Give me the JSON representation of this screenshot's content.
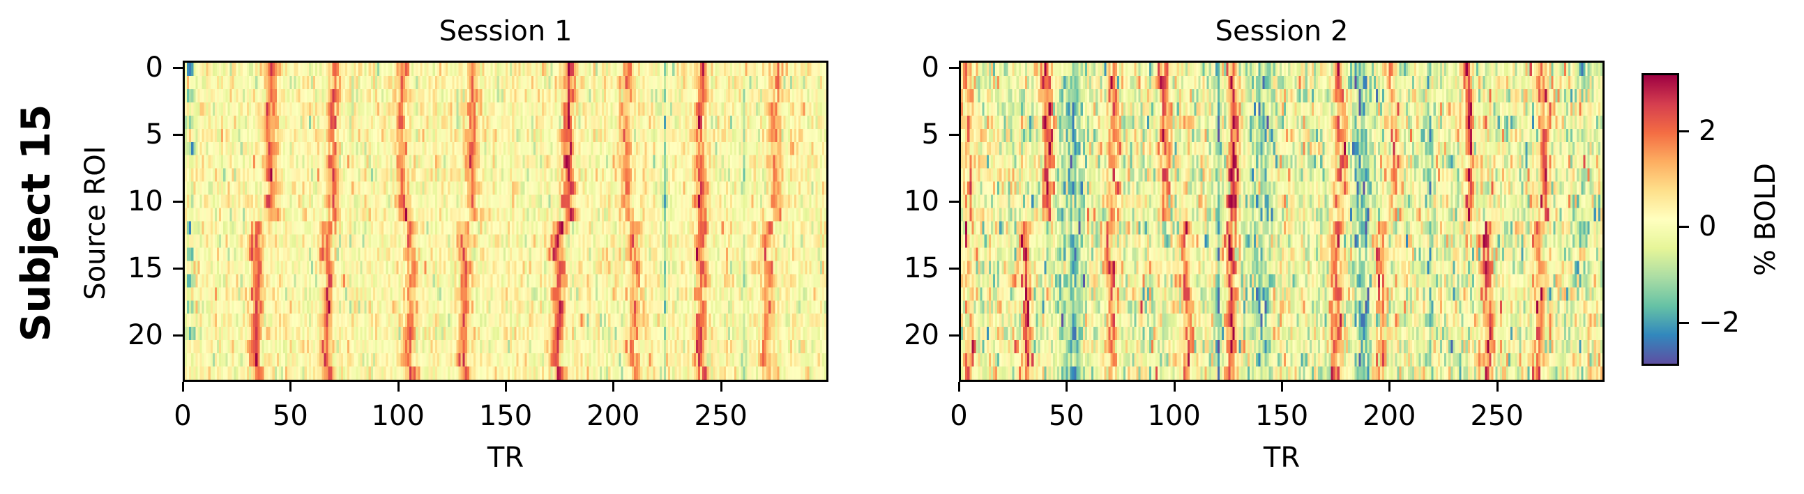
{
  "figure": {
    "row_title": "Subject 15",
    "ylabel": "Source ROI",
    "colorbar_label": "% BOLD",
    "colorbar_ticks": [
      {
        "label": "2",
        "value": 2
      },
      {
        "label": "0",
        "value": 0
      },
      {
        "label": "−2",
        "value": -2
      }
    ],
    "colormap": "Spectral_r",
    "colormap_stops": [
      "#5e4fa2",
      "#3288bd",
      "#66c2a5",
      "#abdda4",
      "#e6f598",
      "#ffffbf",
      "#fee08b",
      "#fdae61",
      "#f46d43",
      "#d53e4f",
      "#9e0142"
    ]
  },
  "panels": [
    {
      "title": "Session 1",
      "xlabel": "TR",
      "x_ticks": [
        "0",
        "50",
        "100",
        "150",
        "200",
        "250"
      ],
      "y_ticks": [
        "0",
        "5",
        "10",
        "15",
        "20"
      ]
    },
    {
      "title": "Session 2",
      "xlabel": "TR",
      "x_ticks": [
        "0",
        "50",
        "100",
        "150",
        "200",
        "250"
      ],
      "y_ticks": [
        "0",
        "5",
        "10",
        "15",
        "20"
      ]
    }
  ],
  "chart_data": [
    {
      "type": "heatmap",
      "title": "Session 1",
      "row_title": "Subject 15",
      "xlabel": "TR",
      "ylabel": "Source ROI",
      "n_rows": 24,
      "n_cols": 300,
      "xlim": [
        0,
        300
      ],
      "ylim": [
        24,
        0
      ],
      "x_ticks": [
        0,
        50,
        100,
        150,
        200,
        250
      ],
      "y_ticks": [
        0,
        5,
        10,
        15,
        20
      ],
      "vmin": -2.9,
      "vmax": 3.2,
      "colorbar_label": "% BOLD",
      "noise_sd": 0.45,
      "baseline": 0.15,
      "seed": 15,
      "description": "Periodic positive BOLD bands (red) at roughly 30-35 TR spacing; rows 0-11 and 12-23 show slightly shifted peak times; low values (blue) near TR 0-5 in several rows and narrow dips near TR 224 and 261.",
      "bands": [
        {
          "tr_rows_0_11": 40,
          "tr_rows_12_23": 33,
          "amp": 1.9,
          "width": 3.0
        },
        {
          "tr_rows_0_11": 69,
          "tr_rows_12_23": 66,
          "amp": 1.9,
          "width": 2.5
        },
        {
          "tr_rows_0_11": 101,
          "tr_rows_12_23": 105,
          "amp": 1.7,
          "width": 2.5
        },
        {
          "tr_rows_0_11": 134,
          "tr_rows_12_23": 130,
          "amp": 1.8,
          "width": 2.5
        },
        {
          "tr_rows_0_11": 179,
          "tr_rows_12_23": 174,
          "amp": 2.4,
          "width": 2.5
        },
        {
          "tr_rows_0_11": 206,
          "tr_rows_12_23": 210,
          "amp": 1.5,
          "width": 2.5
        },
        {
          "tr_rows_0_11": 241,
          "tr_rows_12_23": 241,
          "amp": 2.2,
          "width": 2.5
        },
        {
          "tr_rows_0_11": 276,
          "tr_rows_12_23": 272,
          "amp": 1.6,
          "width": 2.5
        }
      ],
      "dips": [
        {
          "tr": 2,
          "amp": -2.0,
          "width": 2.0,
          "rows": [
            0,
            2,
            4,
            6,
            12,
            14,
            16,
            18,
            20
          ]
        },
        {
          "tr": 224,
          "amp": -1.4,
          "width": 0.8,
          "rows": "all"
        },
        {
          "tr": 261,
          "amp": -1.1,
          "width": 0.8,
          "rows": "all"
        }
      ]
    },
    {
      "type": "heatmap",
      "title": "Session 2",
      "row_title": "Subject 15",
      "xlabel": "TR",
      "ylabel": "Source ROI",
      "n_rows": 24,
      "n_cols": 300,
      "xlim": [
        0,
        300
      ],
      "ylim": [
        24,
        0
      ],
      "x_ticks": [
        0,
        50,
        100,
        150,
        200,
        250
      ],
      "y_ticks": [
        0,
        5,
        10,
        15,
        20
      ],
      "vmin": -2.9,
      "vmax": 3.2,
      "colorbar_label": "% BOLD",
      "noise_sd": 0.75,
      "baseline": -0.1,
      "seed": 152,
      "description": "Noisier session with more negative (green/blue) stretches, especially TR 45-60, 110-160 and 180-200; strong positive bands at TR ~40, ~70, ~100, ~128, ~177, ~240 and ~272; dark blue dip line near TR 120.",
      "bands": [
        {
          "tr_rows_0_11": 3,
          "tr_rows_12_23": 3,
          "amp": 1.3,
          "width": 3.0
        },
        {
          "tr_rows_0_11": 40,
          "tr_rows_12_23": 30,
          "amp": 2.3,
          "width": 2.5
        },
        {
          "tr_rows_0_11": 71,
          "tr_rows_12_23": 70,
          "amp": 1.9,
          "width": 2.5
        },
        {
          "tr_rows_0_11": 95,
          "tr_rows_12_23": 105,
          "amp": 2.0,
          "width": 2.5
        },
        {
          "tr_rows_0_11": 127,
          "tr_rows_12_23": 126,
          "amp": 2.6,
          "width": 2.5
        },
        {
          "tr_rows_0_11": 177,
          "tr_rows_12_23": 175,
          "amp": 2.1,
          "width": 2.5
        },
        {
          "tr_rows_0_11": 202,
          "tr_rows_12_23": 196,
          "amp": 1.6,
          "width": 2.5
        },
        {
          "tr_rows_0_11": 237,
          "tr_rows_12_23": 246,
          "amp": 2.3,
          "width": 2.5
        },
        {
          "tr_rows_0_11": 272,
          "tr_rows_12_23": 270,
          "amp": 2.0,
          "width": 2.5
        }
      ],
      "dips": [
        {
          "tr": 52,
          "amp": -1.3,
          "width": 5.0,
          "rows": "all"
        },
        {
          "tr": 120,
          "amp": -2.2,
          "width": 1.0,
          "rows": "all"
        },
        {
          "tr": 140,
          "amp": -1.2,
          "width": 6.0,
          "rows": "all"
        },
        {
          "tr": 187,
          "amp": -1.5,
          "width": 4.0,
          "rows": "all"
        },
        {
          "tr": 219,
          "amp": -1.3,
          "width": 1.0,
          "rows": "all"
        },
        {
          "tr": 290,
          "amp": -1.2,
          "width": 4.0,
          "rows": [
            0,
            1,
            12,
            13,
            16
          ]
        }
      ]
    }
  ]
}
